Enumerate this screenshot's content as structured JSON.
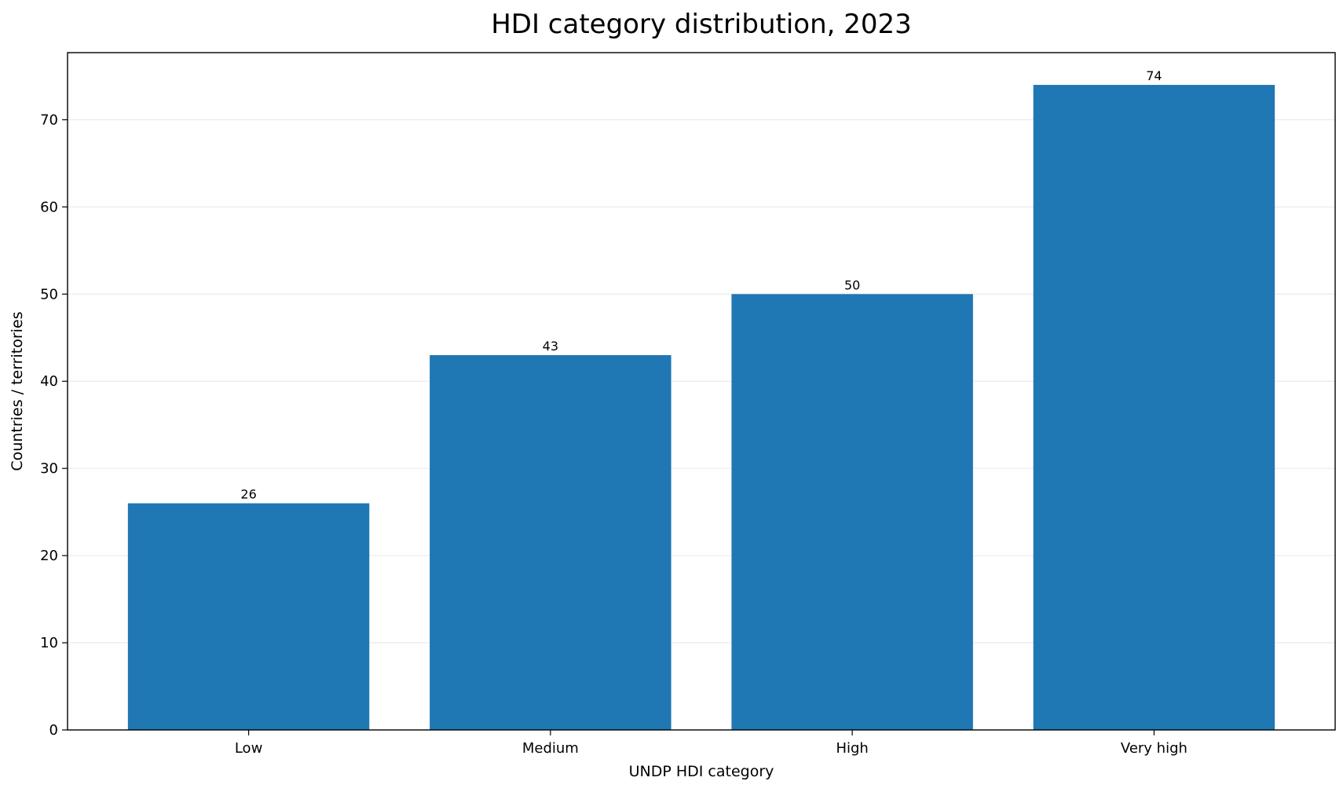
{
  "chart_data": {
    "type": "bar",
    "title": "HDI category distribution, 2023",
    "xlabel": "UNDP HDI category",
    "ylabel": "Countries / territories",
    "categories": [
      "Low",
      "Medium",
      "High",
      "Very high"
    ],
    "values": [
      26,
      43,
      50,
      74
    ],
    "ylim": [
      0,
      77.7
    ],
    "yticks": [
      0,
      10,
      20,
      30,
      40,
      50,
      60,
      70
    ],
    "grid": "y",
    "bar_color": "#1f77b4"
  }
}
